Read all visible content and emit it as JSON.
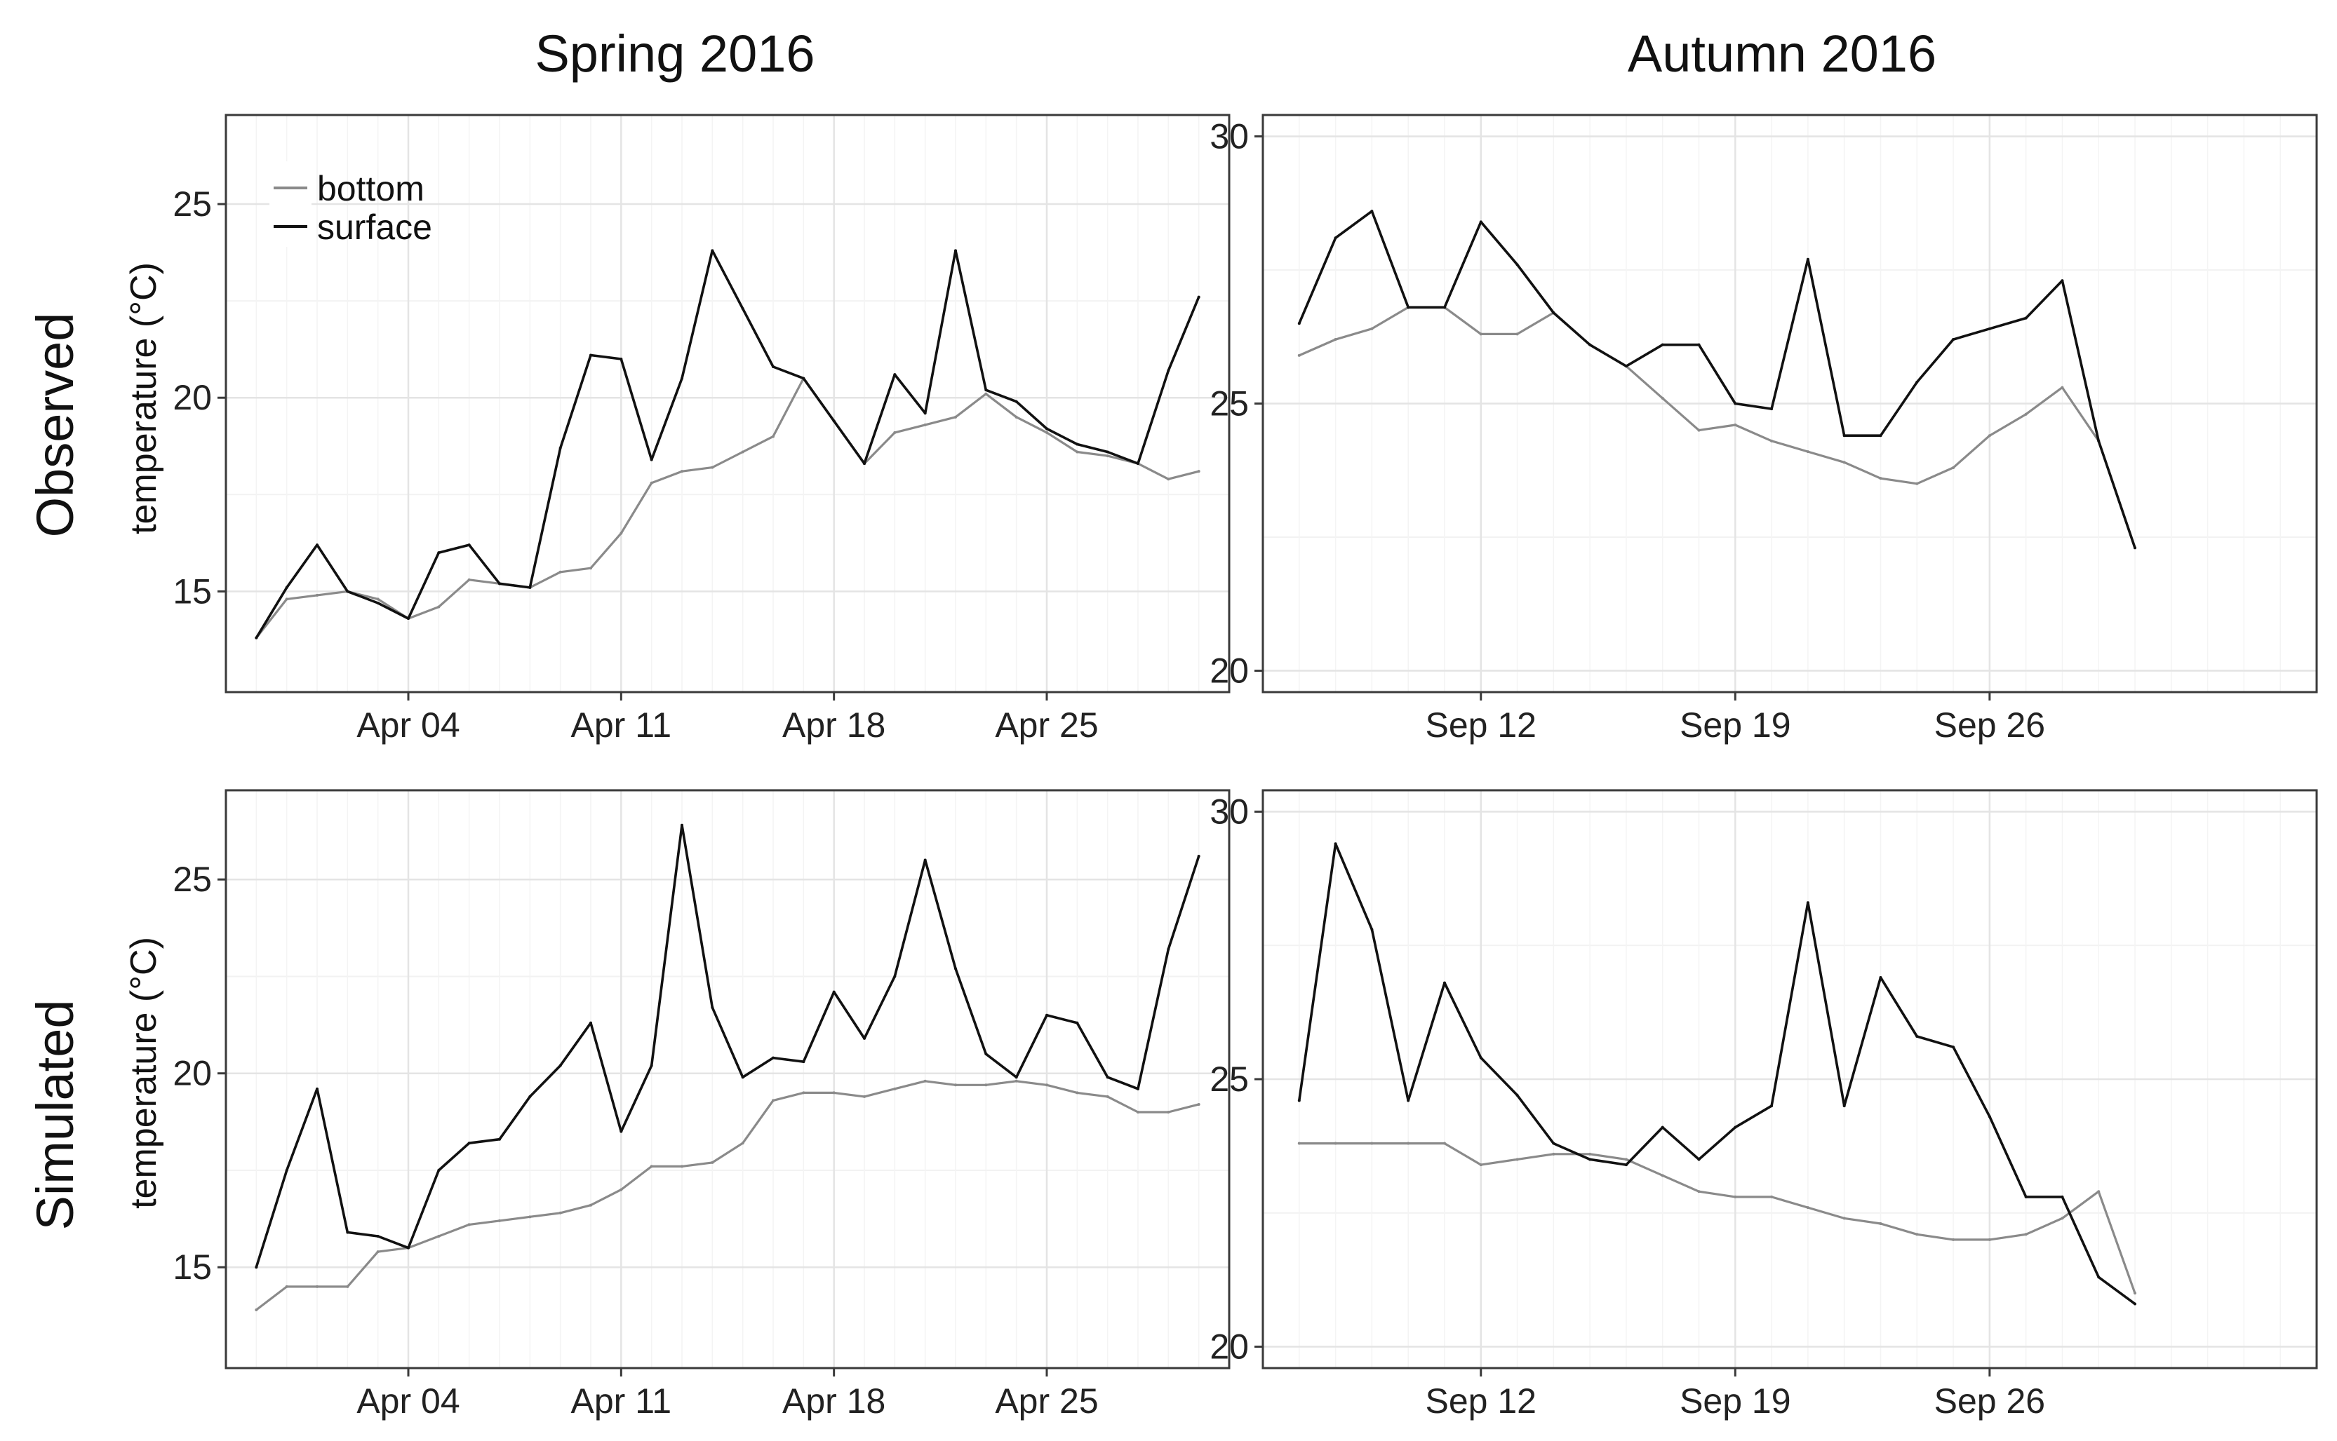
{
  "figure": {
    "column_titles": [
      "Spring 2016",
      "Autumn 2016"
    ],
    "row_titles": [
      "Observed",
      "Simulated"
    ],
    "y_axis_label": "temperature (°C)",
    "legend": [
      {
        "name": "bottom",
        "color": "#8a8a8a"
      },
      {
        "name": "surface",
        "color": "#111111"
      }
    ]
  },
  "chart_data": [
    {
      "type": "line",
      "row": "Observed",
      "column": "Spring 2016",
      "ylabel": "temperature (°C)",
      "ylim": [
        12.4,
        27.3
      ],
      "yticks": [
        15,
        20,
        25
      ],
      "xlim": [
        "2016-03-29",
        "2016-05-01"
      ],
      "xticks": [
        [
          "2016-04-04",
          "Apr 04"
        ],
        [
          "2016-04-11",
          "Apr 11"
        ],
        [
          "2016-04-18",
          "Apr 18"
        ],
        [
          "2016-04-25",
          "Apr 25"
        ]
      ],
      "grid": true,
      "legend_position": "top-left",
      "series": [
        {
          "name": "bottom",
          "x": [
            "2016-03-30",
            "2016-03-31",
            "2016-04-01",
            "2016-04-02",
            "2016-04-03",
            "2016-04-04",
            "2016-04-05",
            "2016-04-06",
            "2016-04-07",
            "2016-04-08",
            "2016-04-09",
            "2016-04-10",
            "2016-04-11",
            "2016-04-12",
            "2016-04-13",
            "2016-04-14",
            "2016-04-15",
            "2016-04-16",
            "2016-04-17",
            "2016-04-18",
            "2016-04-19",
            "2016-04-20",
            "2016-04-21",
            "2016-04-22",
            "2016-04-23",
            "2016-04-24",
            "2016-04-25",
            "2016-04-26",
            "2016-04-27",
            "2016-04-28",
            "2016-04-29",
            "2016-04-30"
          ],
          "y": [
            13.8,
            14.8,
            14.9,
            15.0,
            14.8,
            14.3,
            14.6,
            15.3,
            15.2,
            15.1,
            15.5,
            15.6,
            16.5,
            17.8,
            18.1,
            18.2,
            18.6,
            19.0,
            20.5,
            19.4,
            18.3,
            19.1,
            19.3,
            19.5,
            20.1,
            19.5,
            19.1,
            18.6,
            18.5,
            18.3,
            17.9,
            18.1
          ]
        },
        {
          "name": "surface",
          "x": [
            "2016-03-30",
            "2016-03-31",
            "2016-04-01",
            "2016-04-02",
            "2016-04-03",
            "2016-04-04",
            "2016-04-05",
            "2016-04-06",
            "2016-04-07",
            "2016-04-08",
            "2016-04-09",
            "2016-04-10",
            "2016-04-11",
            "2016-04-12",
            "2016-04-13",
            "2016-04-14",
            "2016-04-15",
            "2016-04-16",
            "2016-04-17",
            "2016-04-18",
            "2016-04-19",
            "2016-04-20",
            "2016-04-21",
            "2016-04-22",
            "2016-04-23",
            "2016-04-24",
            "2016-04-25",
            "2016-04-26",
            "2016-04-27",
            "2016-04-28",
            "2016-04-29",
            "2016-04-30"
          ],
          "y": [
            13.8,
            15.1,
            16.2,
            15.0,
            14.7,
            14.3,
            16.0,
            16.2,
            15.2,
            15.1,
            18.7,
            21.1,
            21.0,
            18.4,
            20.5,
            23.8,
            22.3,
            20.8,
            20.5,
            19.4,
            18.3,
            20.6,
            19.6,
            23.8,
            20.2,
            19.9,
            19.2,
            18.8,
            18.6,
            18.3,
            20.7,
            22.6
          ]
        }
      ]
    },
    {
      "type": "line",
      "row": "Observed",
      "column": "Autumn 2016",
      "ylabel": "",
      "ylim": [
        19.6,
        30.4
      ],
      "yticks": [
        20,
        25,
        30
      ],
      "xlim": [
        "2016-09-06",
        "2016-10-05"
      ],
      "xticks": [
        [
          "2016-09-12",
          "Sep 12"
        ],
        [
          "2016-09-19",
          "Sep 19"
        ],
        [
          "2016-09-26",
          "Sep 26"
        ]
      ],
      "grid": true,
      "series": [
        {
          "name": "bottom",
          "x": [
            "2016-09-07",
            "2016-09-08",
            "2016-09-09",
            "2016-09-10",
            "2016-09-11",
            "2016-09-12",
            "2016-09-13",
            "2016-09-14",
            "2016-09-15",
            "2016-09-16",
            "2016-09-17",
            "2016-09-18",
            "2016-09-19",
            "2016-09-20",
            "2016-09-21",
            "2016-09-22",
            "2016-09-23",
            "2016-09-24",
            "2016-09-25",
            "2016-09-26",
            "2016-09-27",
            "2016-09-28",
            "2016-09-29",
            "2016-09-30"
          ],
          "y": [
            25.9,
            26.2,
            26.4,
            26.8,
            26.8,
            26.3,
            26.3,
            26.7,
            26.1,
            25.7,
            25.1,
            24.5,
            24.6,
            24.3,
            24.1,
            23.9,
            23.6,
            23.5,
            23.8,
            24.4,
            24.8,
            25.3,
            24.3,
            22.3
          ]
        },
        {
          "name": "surface",
          "x": [
            "2016-09-07",
            "2016-09-08",
            "2016-09-09",
            "2016-09-10",
            "2016-09-11",
            "2016-09-12",
            "2016-09-13",
            "2016-09-14",
            "2016-09-15",
            "2016-09-16",
            "2016-09-17",
            "2016-09-18",
            "2016-09-19",
            "2016-09-20",
            "2016-09-21",
            "2016-09-22",
            "2016-09-23",
            "2016-09-24",
            "2016-09-25",
            "2016-09-26",
            "2016-09-27",
            "2016-09-28",
            "2016-09-29",
            "2016-09-30"
          ],
          "y": [
            26.5,
            28.1,
            28.6,
            26.8,
            26.8,
            28.4,
            27.6,
            26.7,
            26.1,
            25.7,
            26.1,
            26.1,
            25.0,
            24.9,
            27.7,
            24.4,
            24.4,
            25.4,
            26.2,
            26.4,
            26.6,
            27.3,
            24.3,
            22.3
          ]
        }
      ]
    },
    {
      "type": "line",
      "row": "Simulated",
      "column": "Spring 2016",
      "ylabel": "temperature (°C)",
      "ylim": [
        12.4,
        27.3
      ],
      "yticks": [
        15,
        20,
        25
      ],
      "xlim": [
        "2016-03-29",
        "2016-05-01"
      ],
      "xticks": [
        [
          "2016-04-04",
          "Apr 04"
        ],
        [
          "2016-04-11",
          "Apr 11"
        ],
        [
          "2016-04-18",
          "Apr 18"
        ],
        [
          "2016-04-25",
          "Apr 25"
        ]
      ],
      "grid": true,
      "series": [
        {
          "name": "bottom",
          "x": [
            "2016-03-30",
            "2016-03-31",
            "2016-04-01",
            "2016-04-02",
            "2016-04-03",
            "2016-04-04",
            "2016-04-05",
            "2016-04-06",
            "2016-04-07",
            "2016-04-08",
            "2016-04-09",
            "2016-04-10",
            "2016-04-11",
            "2016-04-12",
            "2016-04-13",
            "2016-04-14",
            "2016-04-15",
            "2016-04-16",
            "2016-04-17",
            "2016-04-18",
            "2016-04-19",
            "2016-04-20",
            "2016-04-21",
            "2016-04-22",
            "2016-04-23",
            "2016-04-24",
            "2016-04-25",
            "2016-04-26",
            "2016-04-27",
            "2016-04-28",
            "2016-04-29",
            "2016-04-30"
          ],
          "y": [
            13.9,
            14.5,
            14.5,
            14.5,
            15.4,
            15.5,
            15.8,
            16.1,
            16.2,
            16.3,
            16.4,
            16.6,
            17.0,
            17.6,
            17.6,
            17.7,
            18.2,
            19.3,
            19.5,
            19.5,
            19.4,
            19.6,
            19.8,
            19.7,
            19.7,
            19.8,
            19.7,
            19.5,
            19.4,
            19.0,
            19.0,
            19.2
          ]
        },
        {
          "name": "surface",
          "x": [
            "2016-03-30",
            "2016-03-31",
            "2016-04-01",
            "2016-04-02",
            "2016-04-03",
            "2016-04-04",
            "2016-04-05",
            "2016-04-06",
            "2016-04-07",
            "2016-04-08",
            "2016-04-09",
            "2016-04-10",
            "2016-04-11",
            "2016-04-12",
            "2016-04-13",
            "2016-04-14",
            "2016-04-15",
            "2016-04-16",
            "2016-04-17",
            "2016-04-18",
            "2016-04-19",
            "2016-04-20",
            "2016-04-21",
            "2016-04-22",
            "2016-04-23",
            "2016-04-24",
            "2016-04-25",
            "2016-04-26",
            "2016-04-27",
            "2016-04-28",
            "2016-04-29",
            "2016-04-30"
          ],
          "y": [
            15.0,
            17.5,
            19.6,
            15.9,
            15.8,
            15.5,
            17.5,
            18.2,
            18.3,
            19.4,
            20.2,
            21.3,
            18.5,
            20.2,
            26.4,
            21.7,
            19.9,
            20.4,
            20.3,
            22.1,
            20.9,
            22.5,
            25.5,
            22.7,
            20.5,
            19.9,
            21.5,
            21.3,
            19.9,
            19.6,
            23.2,
            25.6
          ]
        }
      ]
    },
    {
      "type": "line",
      "row": "Simulated",
      "column": "Autumn 2016",
      "ylabel": "",
      "ylim": [
        19.6,
        30.4
      ],
      "yticks": [
        20,
        25,
        30
      ],
      "xlim": [
        "2016-09-06",
        "2016-10-05"
      ],
      "xticks": [
        [
          "2016-09-12",
          "Sep 12"
        ],
        [
          "2016-09-19",
          "Sep 19"
        ],
        [
          "2016-09-26",
          "Sep 26"
        ]
      ],
      "grid": true,
      "series": [
        {
          "name": "bottom",
          "x": [
            "2016-09-07",
            "2016-09-08",
            "2016-09-09",
            "2016-09-10",
            "2016-09-11",
            "2016-09-12",
            "2016-09-13",
            "2016-09-14",
            "2016-09-15",
            "2016-09-16",
            "2016-09-17",
            "2016-09-18",
            "2016-09-19",
            "2016-09-20",
            "2016-09-21",
            "2016-09-22",
            "2016-09-23",
            "2016-09-24",
            "2016-09-25",
            "2016-09-26",
            "2016-09-27",
            "2016-09-28",
            "2016-09-29",
            "2016-09-30"
          ],
          "y": [
            23.8,
            23.8,
            23.8,
            23.8,
            23.8,
            23.4,
            23.5,
            23.6,
            23.6,
            23.5,
            23.2,
            22.9,
            22.8,
            22.8,
            22.6,
            22.4,
            22.3,
            22.1,
            22.0,
            22.0,
            22.1,
            22.4,
            22.9,
            21.0
          ]
        },
        {
          "name": "surface",
          "x": [
            "2016-09-07",
            "2016-09-08",
            "2016-09-09",
            "2016-09-10",
            "2016-09-11",
            "2016-09-12",
            "2016-09-13",
            "2016-09-14",
            "2016-09-15",
            "2016-09-16",
            "2016-09-17",
            "2016-09-18",
            "2016-09-19",
            "2016-09-20",
            "2016-09-21",
            "2016-09-22",
            "2016-09-23",
            "2016-09-24",
            "2016-09-25",
            "2016-09-26",
            "2016-09-27",
            "2016-09-28",
            "2016-09-29",
            "2016-09-30"
          ],
          "y": [
            24.6,
            29.4,
            27.8,
            24.6,
            26.8,
            25.4,
            24.7,
            23.8,
            23.5,
            23.4,
            24.1,
            23.5,
            24.1,
            24.5,
            28.3,
            24.5,
            26.9,
            25.8,
            25.6,
            24.3,
            22.8,
            22.8,
            21.3,
            20.8
          ]
        }
      ]
    }
  ]
}
